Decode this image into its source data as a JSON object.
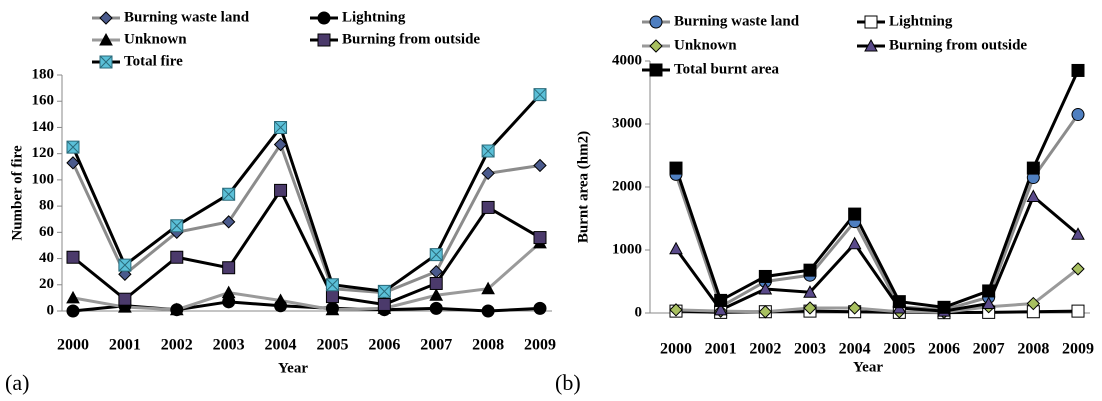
{
  "chart_data": [
    {
      "type": "line",
      "label": "(a)",
      "y_label": "Number of fire",
      "x_label": "Year",
      "categories": [
        "2000",
        "2001",
        "2002",
        "2003",
        "2004",
        "2005",
        "2006",
        "2007",
        "2008",
        "2009"
      ],
      "ylim": [
        0,
        180
      ],
      "yticks": [
        0,
        20,
        40,
        60,
        80,
        100,
        120,
        140,
        160,
        180
      ],
      "series": [
        {
          "name": "Burning waste land",
          "color": "#8c8c8c",
          "marker": "diamond",
          "marker_color": "#4a5a8c",
          "values": [
            113,
            28,
            60,
            68,
            127,
            17,
            14,
            30,
            105,
            111
          ]
        },
        {
          "name": "Lightning",
          "color": "#000000",
          "marker": "circle",
          "marker_color": "#000000",
          "values": [
            0,
            4,
            1,
            7,
            4,
            2,
            1,
            2,
            0,
            2
          ]
        },
        {
          "name": "Unknown",
          "color": "#9a9a9a",
          "marker": "triangle",
          "marker_color": "#000000",
          "values": [
            10,
            3,
            1,
            14,
            8,
            1,
            2,
            12,
            17,
            52
          ]
        },
        {
          "name": "Burning from outside",
          "color": "#000000",
          "marker": "square",
          "marker_color": "#4b3a6b",
          "values": [
            41,
            9,
            41,
            33,
            92,
            11,
            5,
            21,
            79,
            56
          ]
        },
        {
          "name": "Total fire",
          "color": "#000000",
          "marker": "xsquare",
          "marker_color": "#5bc0d8",
          "values": [
            125,
            35,
            65,
            89,
            140,
            20,
            15,
            43,
            122,
            165
          ]
        }
      ]
    },
    {
      "type": "line",
      "label": "(b)",
      "y_label": "Burnt area (hm2)",
      "x_label": "Year",
      "categories": [
        "2000",
        "2001",
        "2002",
        "2003",
        "2004",
        "2005",
        "2006",
        "2007",
        "2008",
        "2009"
      ],
      "ylim": [
        0,
        4000
      ],
      "yticks": [
        0,
        1000,
        2000,
        3000,
        4000
      ],
      "series": [
        {
          "name": "Burning waste land",
          "color": "#8c8c8c",
          "marker": "circle",
          "marker_color": "#4f7fc0",
          "values": [
            2200,
            100,
            500,
            600,
            1450,
            100,
            50,
            250,
            2150,
            3150
          ]
        },
        {
          "name": "Lightning",
          "color": "#000000",
          "marker": "square",
          "marker_color": "#ffffff",
          "values": [
            30,
            10,
            20,
            30,
            20,
            10,
            5,
            10,
            20,
            30
          ]
        },
        {
          "name": "Unknown",
          "color": "#9a9a9a",
          "marker": "diamond",
          "marker_color": "#a8c060",
          "values": [
            50,
            30,
            20,
            80,
            80,
            20,
            10,
            100,
            150,
            700
          ]
        },
        {
          "name": "Burning from outside",
          "color": "#000000",
          "marker": "triangle",
          "marker_color": "#5a4a8a",
          "values": [
            1020,
            50,
            380,
            330,
            1100,
            80,
            30,
            150,
            1850,
            1250
          ]
        },
        {
          "name": "Total burnt area",
          "color": "#000000",
          "marker": "square",
          "marker_color": "#000000",
          "values": [
            2300,
            200,
            580,
            680,
            1570,
            180,
            90,
            350,
            2300,
            3850
          ]
        }
      ]
    }
  ]
}
